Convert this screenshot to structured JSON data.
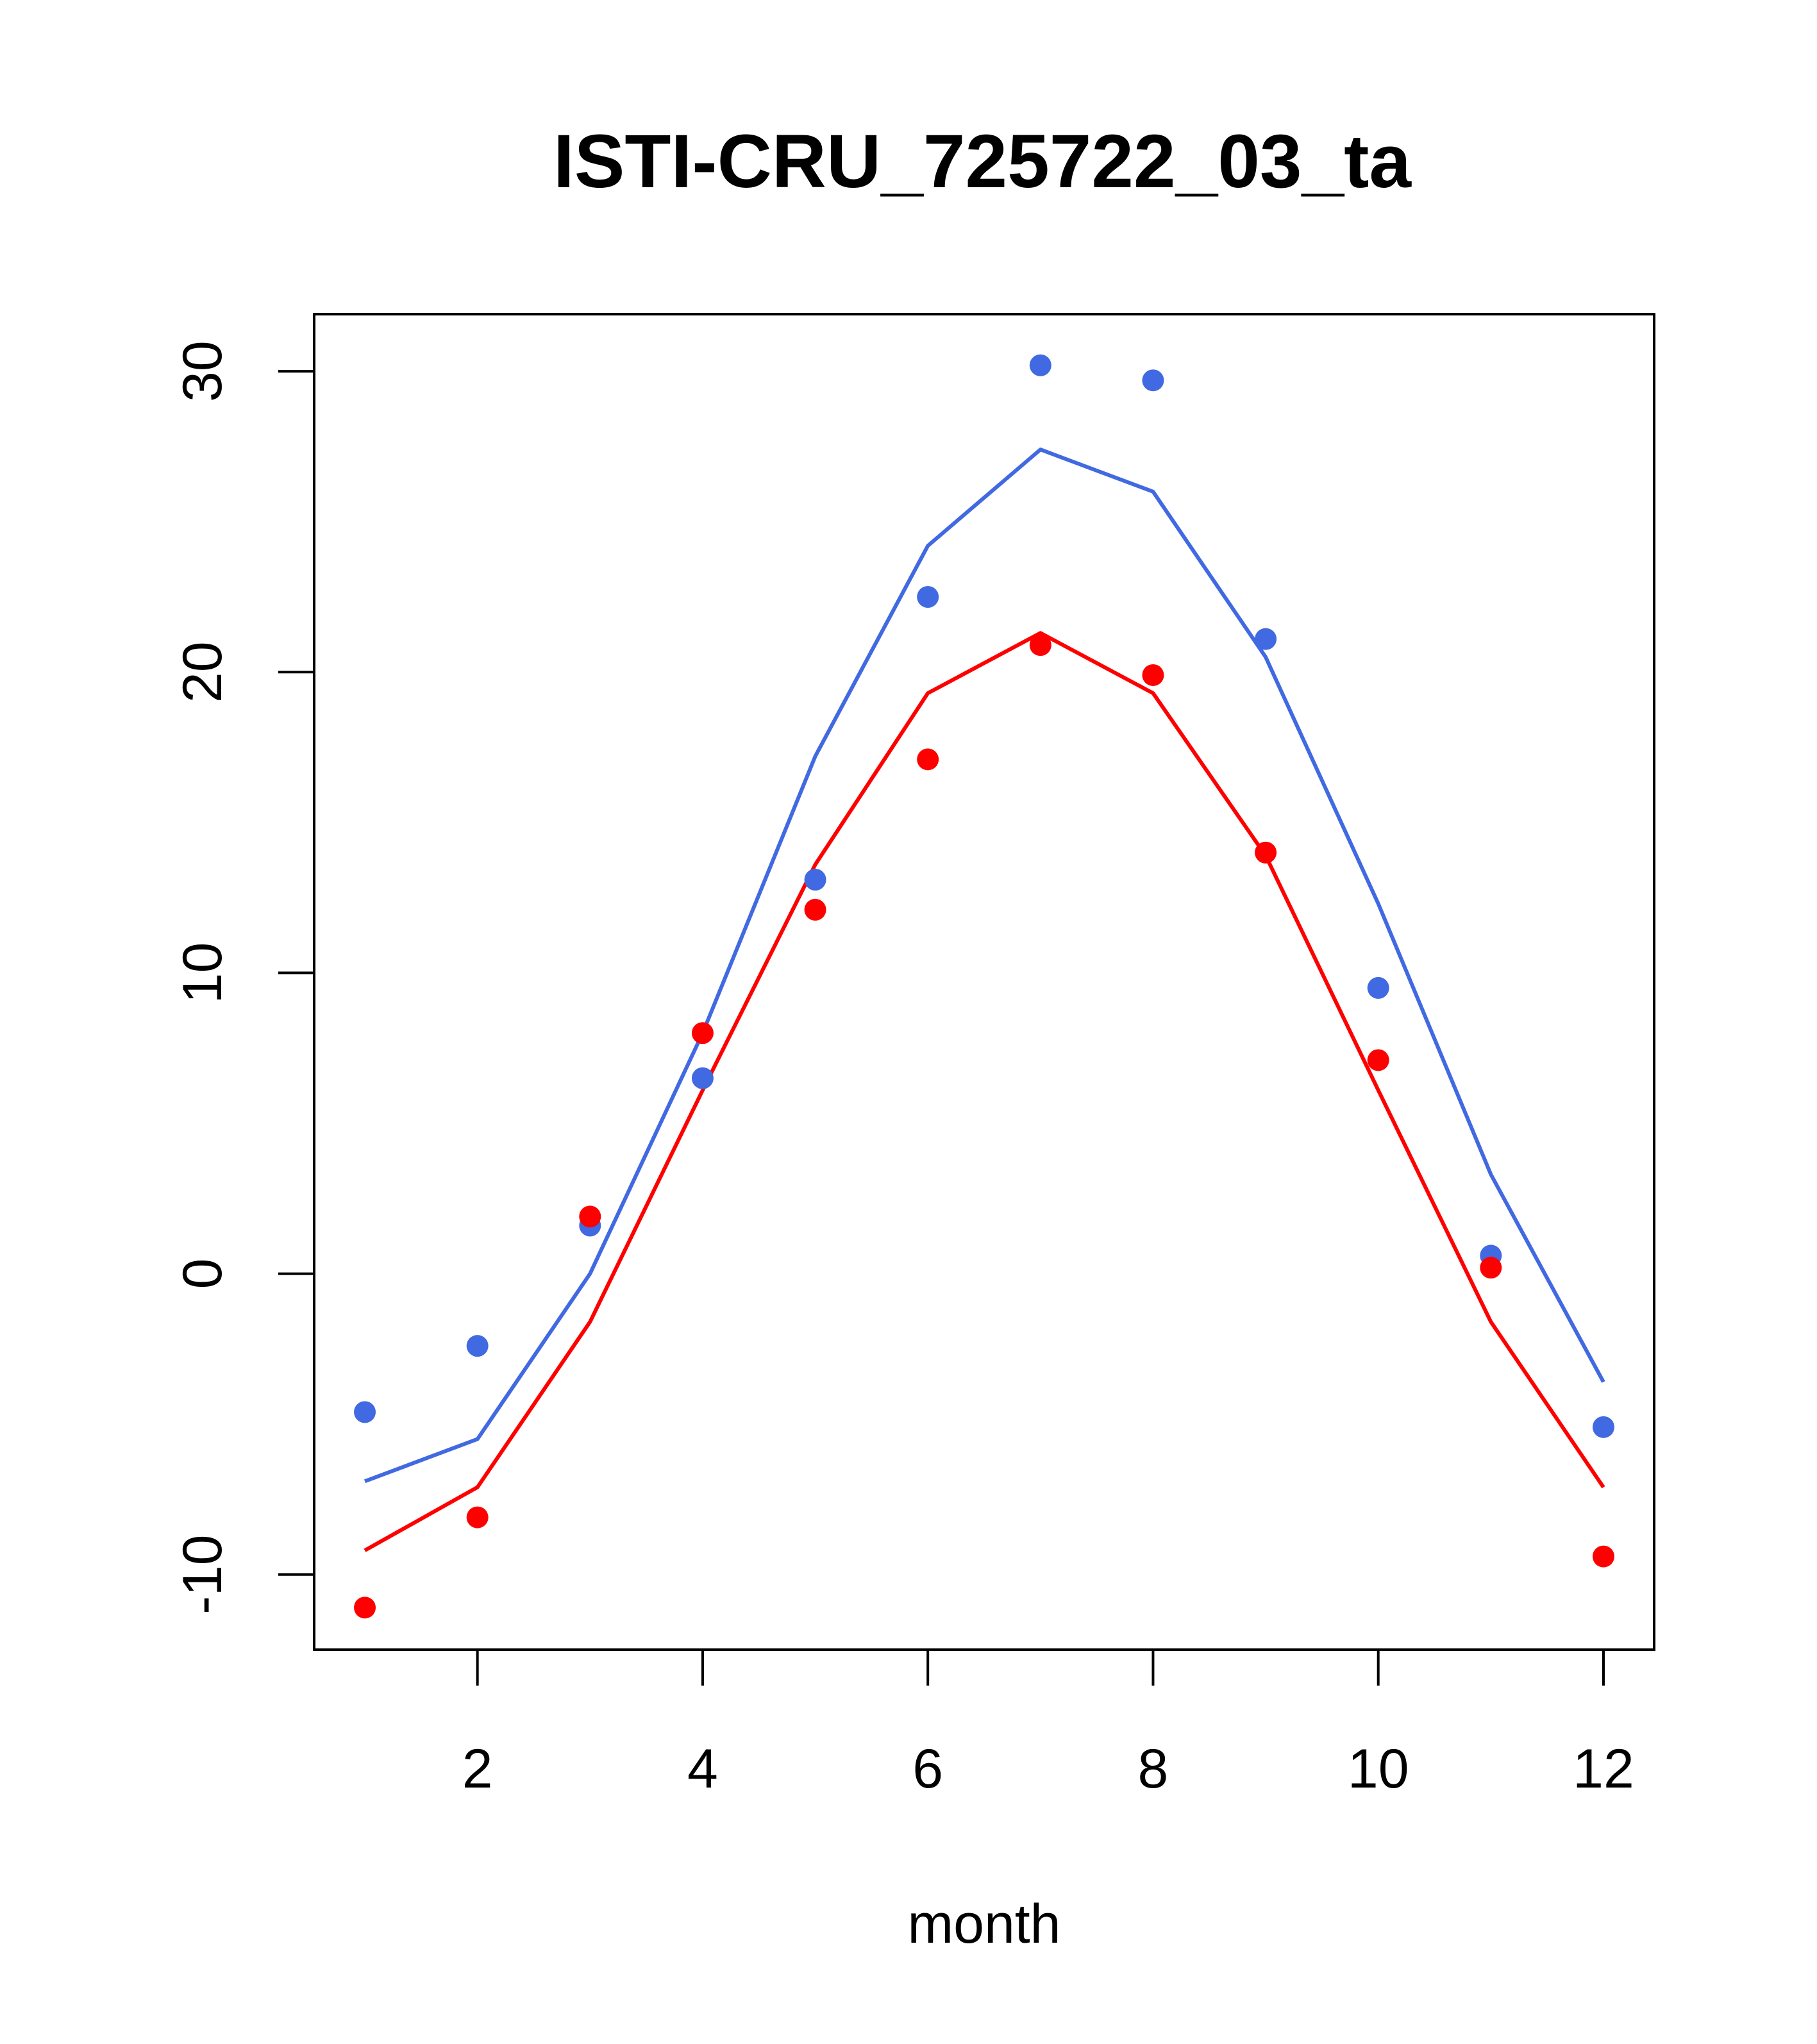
{
  "chart_data": {
    "type": "line",
    "title": "ISTI-CRU_725722_03_ta",
    "xlabel": "month",
    "ylabel": "",
    "xlim": [
      0.55,
      12.45
    ],
    "ylim": [
      -12.5,
      31.9
    ],
    "x_ticks": [
      2,
      4,
      6,
      8,
      10,
      12
    ],
    "y_ticks": [
      -10,
      0,
      10,
      20,
      30
    ],
    "grid": false,
    "x": [
      1,
      2,
      3,
      4,
      5,
      6,
      7,
      8,
      9,
      10,
      11,
      12
    ],
    "series": [
      {
        "kind": "line",
        "color": "#4169e1",
        "values": [
          -6.9,
          -5.5,
          0.0,
          8.0,
          17.2,
          24.2,
          27.4,
          26.0,
          20.5,
          12.3,
          3.3,
          -3.6
        ]
      },
      {
        "kind": "line",
        "color": "#ff0000",
        "values": [
          -9.2,
          -7.1,
          -1.6,
          6.1,
          13.6,
          19.3,
          21.3,
          19.3,
          13.9,
          6.1,
          -1.6,
          -7.1
        ]
      },
      {
        "kind": "points",
        "color": "#4169e1",
        "values": [
          -4.6,
          -2.4,
          1.6,
          6.5,
          13.1,
          22.5,
          30.2,
          29.7,
          21.1,
          9.5,
          0.6,
          -5.1
        ]
      },
      {
        "kind": "points",
        "color": "#ff0000",
        "values": [
          -11.1,
          -8.1,
          1.9,
          8.0,
          12.1,
          17.1,
          20.9,
          19.9,
          14.0,
          7.1,
          0.2,
          -9.4
        ]
      }
    ]
  }
}
